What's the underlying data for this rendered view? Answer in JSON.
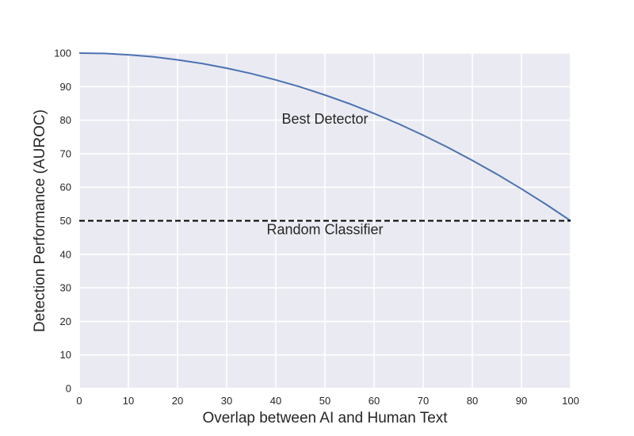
{
  "chart_data": {
    "type": "line",
    "title": "",
    "xlabel": "Overlap between AI and Human Text",
    "ylabel": "Detection Performance (AUROC)",
    "xlim": [
      0,
      100
    ],
    "ylim": [
      0,
      100
    ],
    "x_ticks": [
      0,
      10,
      20,
      30,
      40,
      50,
      60,
      70,
      80,
      90,
      100
    ],
    "y_ticks": [
      0,
      10,
      20,
      30,
      40,
      50,
      60,
      70,
      80,
      90,
      100
    ],
    "grid": true,
    "colors": {
      "background": "#eaeaf2",
      "grid": "#ffffff",
      "best_detector": "#4c72b0",
      "random_classifier": "#000000"
    },
    "series": [
      {
        "name": "Best Detector",
        "style": "solid",
        "x": [
          0,
          5,
          10,
          15,
          20,
          25,
          30,
          35,
          40,
          45,
          50,
          55,
          60,
          65,
          70,
          75,
          80,
          85,
          90,
          95,
          100
        ],
        "y": [
          100,
          99.9,
          99.5,
          98.9,
          98.0,
          96.9,
          95.5,
          93.9,
          92.0,
          89.9,
          87.5,
          84.9,
          82.0,
          78.9,
          75.5,
          71.9,
          68.0,
          63.9,
          59.5,
          54.9,
          50.0
        ]
      },
      {
        "name": "Random Classifier",
        "style": "dashed",
        "x": [
          0,
          100
        ],
        "y": [
          50,
          50
        ]
      }
    ],
    "annotations": [
      {
        "text": "Best Detector",
        "x": 50,
        "y": 79
      },
      {
        "text": "Random Classifier",
        "x": 50,
        "y": 46
      }
    ]
  }
}
